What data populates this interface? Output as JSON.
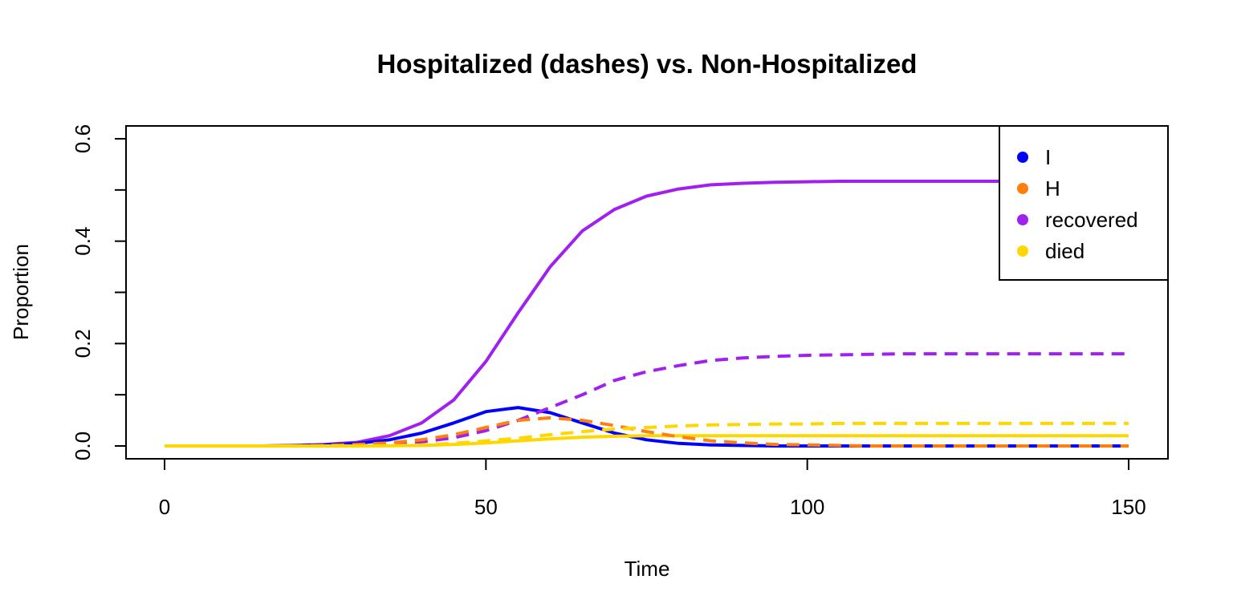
{
  "chart_data": {
    "type": "line",
    "title": "Hospitalized (dashes) vs. Non-Hospitalized",
    "xlabel": "Time",
    "ylabel": "Proportion",
    "xlim": [
      0,
      150
    ],
    "ylim": [
      0,
      0.6
    ],
    "x_ticks": [
      0,
      50,
      100,
      150
    ],
    "x_tick_labels": [
      "0",
      "50",
      "100",
      "150"
    ],
    "y_ticks": [
      0,
      0.1,
      0.2,
      0.3,
      0.4,
      0.5,
      0.6
    ],
    "y_tick_labels": [
      "0.0",
      "",
      "0.2",
      "",
      "0.4",
      "",
      "0.6"
    ],
    "grid": false,
    "legend": {
      "position": "top-right",
      "entries": [
        {
          "label": "I",
          "color": "#0000FF"
        },
        {
          "label": "H",
          "color": "#FF7F0E"
        },
        {
          "label": "recovered",
          "color": "#A020F0"
        },
        {
          "label": "died",
          "color": "#FFD700"
        }
      ]
    },
    "x": [
      0,
      5,
      10,
      15,
      20,
      25,
      30,
      35,
      40,
      45,
      50,
      55,
      60,
      65,
      70,
      75,
      80,
      85,
      90,
      95,
      100,
      105,
      110,
      115,
      120,
      125,
      130,
      135,
      140,
      145,
      150
    ],
    "series": [
      {
        "name": "recovered",
        "style": "solid",
        "color": "#A020F0",
        "values": [
          0,
          0,
          0,
          0,
          0.001,
          0.003,
          0.007,
          0.02,
          0.045,
          0.09,
          0.165,
          0.26,
          0.35,
          0.42,
          0.462,
          0.488,
          0.502,
          0.51,
          0.513,
          0.515,
          0.516,
          0.517,
          0.517,
          0.517,
          0.517,
          0.517,
          0.517,
          0.517,
          0.517,
          0.517,
          0.517
        ]
      },
      {
        "name": "I",
        "style": "solid",
        "color": "#0000FF",
        "values": [
          0,
          0,
          0,
          0,
          0.0005,
          0.002,
          0.005,
          0.012,
          0.025,
          0.045,
          0.067,
          0.075,
          0.065,
          0.045,
          0.025,
          0.012,
          0.005,
          0.002,
          0.001,
          0,
          0,
          0,
          0,
          0,
          0,
          0,
          0,
          0,
          0,
          0,
          0
        ]
      },
      {
        "name": "died",
        "style": "solid",
        "color": "#FFD700",
        "values": [
          0,
          0,
          0,
          0,
          0,
          0,
          0,
          0.0005,
          0.001,
          0.003,
          0.006,
          0.01,
          0.014,
          0.017,
          0.019,
          0.02,
          0.02,
          0.02,
          0.02,
          0.02,
          0.02,
          0.02,
          0.02,
          0.02,
          0.02,
          0.02,
          0.02,
          0.02,
          0.02,
          0.02,
          0.02
        ]
      },
      {
        "name": "recovered",
        "style": "dashed",
        "color": "#A020F0",
        "values": [
          0,
          0,
          0,
          0,
          0,
          0.0005,
          0.001,
          0.003,
          0.008,
          0.016,
          0.03,
          0.05,
          0.075,
          0.1,
          0.128,
          0.145,
          0.157,
          0.167,
          0.172,
          0.175,
          0.177,
          0.178,
          0.179,
          0.18,
          0.18,
          0.18,
          0.18,
          0.18,
          0.18,
          0.18,
          0.18
        ]
      },
      {
        "name": "H",
        "style": "dashed",
        "color": "#FF7F0E",
        "values": [
          0,
          0,
          0,
          0,
          0,
          0.001,
          0.003,
          0.006,
          0.012,
          0.022,
          0.036,
          0.05,
          0.055,
          0.05,
          0.04,
          0.028,
          0.018,
          0.01,
          0.006,
          0.003,
          0.002,
          0.001,
          0,
          0,
          0,
          0,
          0,
          0,
          0,
          0,
          0
        ]
      },
      {
        "name": "died",
        "style": "dashed",
        "color": "#FFD700",
        "values": [
          0,
          0,
          0,
          0,
          0,
          0,
          0,
          0.0005,
          0.002,
          0.005,
          0.01,
          0.015,
          0.022,
          0.028,
          0.033,
          0.036,
          0.039,
          0.041,
          0.042,
          0.043,
          0.043,
          0.044,
          0.044,
          0.044,
          0.044,
          0.044,
          0.044,
          0.044,
          0.044,
          0.044,
          0.044
        ]
      }
    ]
  }
}
